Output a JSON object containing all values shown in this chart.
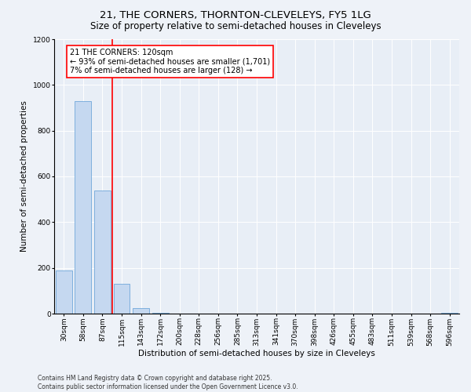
{
  "title_line1": "21, THE CORNERS, THORNTON-CLEVELEYS, FY5 1LG",
  "title_line2": "Size of property relative to semi-detached houses in Cleveleys",
  "xlabel": "Distribution of semi-detached houses by size in Cleveleys",
  "ylabel": "Number of semi-detached properties",
  "categories": [
    "30sqm",
    "58sqm",
    "87sqm",
    "115sqm",
    "143sqm",
    "172sqm",
    "200sqm",
    "228sqm",
    "256sqm",
    "285sqm",
    "313sqm",
    "341sqm",
    "370sqm",
    "398sqm",
    "426sqm",
    "455sqm",
    "483sqm",
    "511sqm",
    "539sqm",
    "568sqm",
    "596sqm"
  ],
  "values": [
    190,
    930,
    540,
    130,
    25,
    5,
    0,
    0,
    0,
    0,
    0,
    0,
    0,
    0,
    0,
    0,
    0,
    0,
    0,
    0,
    5
  ],
  "bar_color": "#c5d8f0",
  "bar_edge_color": "#5b9bd5",
  "vline_color": "red",
  "vline_x": 2.5,
  "annotation_text": "21 THE CORNERS: 120sqm\n← 93% of semi-detached houses are smaller (1,701)\n7% of semi-detached houses are larger (128) →",
  "annotation_box_color": "white",
  "annotation_box_edge": "red",
  "ylim": [
    0,
    1200
  ],
  "yticks": [
    0,
    200,
    400,
    600,
    800,
    1000,
    1200
  ],
  "background_color": "#eef2f8",
  "plot_bg_color": "#e8eef6",
  "footnote": "Contains HM Land Registry data © Crown copyright and database right 2025.\nContains public sector information licensed under the Open Government Licence v3.0.",
  "title_fontsize": 9.5,
  "subtitle_fontsize": 8.5,
  "axis_label_fontsize": 7.5,
  "tick_fontsize": 6.5,
  "annotation_fontsize": 7,
  "footnote_fontsize": 5.5
}
